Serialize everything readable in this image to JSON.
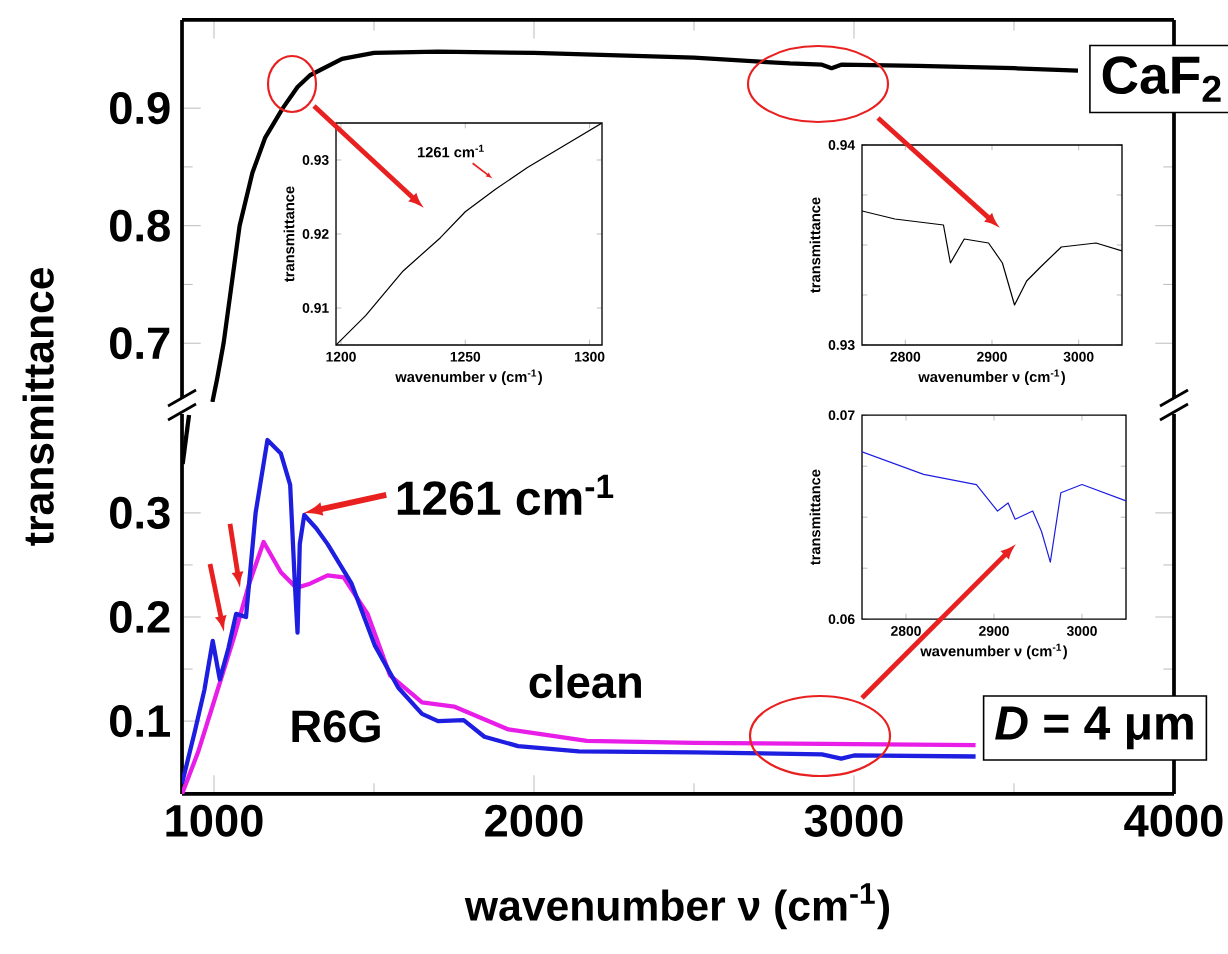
{
  "chart_data": [
    {
      "type": "line",
      "xlim": [
        900,
        4000
      ],
      "ylim": [
        0.65,
        0.975
      ],
      "xticks": [
        1000,
        2000,
        3000,
        4000
      ],
      "yticks": [
        0.7,
        0.8,
        0.9
      ],
      "tick_labels": "y",
      "series": [
        {
          "color": "#000000",
          "x": [
            995,
            1010,
            1030,
            1055,
            1080,
            1120,
            1160,
            1215,
            1261,
            1300,
            1400,
            1500,
            1700,
            2000,
            2500,
            2800,
            2900,
            2930,
            2960,
            3200,
            3500,
            3700
          ],
          "values": [
            0.65,
            0.67,
            0.7,
            0.75,
            0.8,
            0.845,
            0.875,
            0.9,
            0.918,
            0.928,
            0.942,
            0.947,
            0.948,
            0.947,
            0.943,
            0.938,
            0.937,
            0.934,
            0.937,
            0.936,
            0.934,
            0.932
          ]
        }
      ],
      "annotations": [
        "CaF$_{2}$"
      ]
    },
    {
      "type": "line",
      "xlim": [
        900,
        4000
      ],
      "ylim": [
        0.03,
        0.395
      ],
      "xticks": [
        1000,
        2000,
        3000,
        4000
      ],
      "yticks": [
        0.1,
        0.2,
        0.3
      ],
      "xlabel": "wavenumber ν (cm$^{-1}$)",
      "ylabel": "transmittance",
      "series": [
        {
          "color": "#000000",
          "x": [
            902,
            922
          ],
          "values": [
            0.347,
            0.394
          ]
        },
        {
          "name": "clean",
          "color": "#e81ee8",
          "x": [
            900,
            950,
            996,
            1062,
            1110,
            1155,
            1209,
            1257,
            1300,
            1355,
            1405,
            1480,
            1550,
            1650,
            1750,
            1920,
            2165,
            2500,
            3000,
            3380
          ],
          "values": [
            0.03,
            0.07,
            0.115,
            0.18,
            0.232,
            0.272,
            0.243,
            0.228,
            0.232,
            0.24,
            0.238,
            0.203,
            0.144,
            0.118,
            0.114,
            0.092,
            0.081,
            0.079,
            0.078,
            0.077
          ]
        },
        {
          "name": "R6G",
          "color": "#1e1ee0",
          "x": [
            900,
            940,
            970,
            996,
            1018,
            1045,
            1069,
            1100,
            1130,
            1167,
            1209,
            1238,
            1253,
            1261,
            1268,
            1282,
            1320,
            1355,
            1430,
            1502,
            1576,
            1650,
            1700,
            1780,
            1845,
            1950,
            2140,
            2500,
            2900,
            2960,
            3000,
            3380
          ],
          "values": [
            0.04,
            0.09,
            0.13,
            0.177,
            0.14,
            0.17,
            0.203,
            0.2,
            0.3,
            0.37,
            0.357,
            0.327,
            0.23,
            0.185,
            0.27,
            0.298,
            0.285,
            0.27,
            0.232,
            0.173,
            0.132,
            0.107,
            0.1,
            0.101,
            0.085,
            0.076,
            0.071,
            0.07,
            0.068,
            0.064,
            0.067,
            0.066
          ]
        }
      ],
      "annotations": [
        {
          "text": "1261 cm$^{-1}$",
          "x": 1261,
          "y": 0.3
        },
        "*D* = 4 μm"
      ]
    },
    {
      "type": "line",
      "xlim": [
        1198,
        1305
      ],
      "ylim": [
        0.905,
        0.935
      ],
      "xticks": [
        1200,
        1250,
        1300
      ],
      "yticks": [
        0.91,
        0.92,
        0.93
      ],
      "xlabel": "wavenumber ν (cm$^{-1}$)",
      "ylabel": "transmittance",
      "series": [
        {
          "color": "#000000",
          "x": [
            1198,
            1210,
            1225,
            1240,
            1250,
            1262,
            1275,
            1290,
            1300,
            1305
          ],
          "values": [
            0.905,
            0.909,
            0.915,
            0.9195,
            0.923,
            0.926,
            0.929,
            0.932,
            0.934,
            0.935
          ]
        }
      ],
      "annotations": [
        {
          "text": "1261 cm$^{-1}$",
          "x": 1261,
          "y": 0.9275
        }
      ]
    },
    {
      "type": "line",
      "xlim": [
        2750,
        3050
      ],
      "ylim": [
        0.93,
        0.94
      ],
      "xticks": [
        2800,
        2900,
        3000
      ],
      "yticks": [
        0.93,
        {
          "value": 0.9325,
          "label": null
        },
        {
          "value": 0.935,
          "label": null
        },
        {
          "value": 0.9375,
          "label": null
        },
        0.94
      ],
      "xlabel": "wavenumber ν (cm$^{-1}$)",
      "ylabel": "transmittance",
      "series": [
        {
          "color": "#000000",
          "x": [
            2750,
            2788,
            2844,
            2852,
            2868,
            2896,
            2912,
            2926,
            2940,
            2956,
            2980,
            3020,
            3050
          ],
          "values": [
            0.9367,
            0.9363,
            0.936,
            0.9341,
            0.9353,
            0.9351,
            0.9341,
            0.932,
            0.9332,
            0.9339,
            0.9349,
            0.9351,
            0.9347
          ]
        }
      ]
    },
    {
      "type": "line",
      "xlim": [
        2750,
        3050
      ],
      "ylim": [
        0.06,
        0.07
      ],
      "xticks": [
        2800,
        2900,
        3000
      ],
      "yticks": [
        0.06,
        {
          "value": 0.0625,
          "label": null
        },
        {
          "value": 0.065,
          "label": null
        },
        {
          "value": 0.0675,
          "label": null
        },
        0.07
      ],
      "xlabel": "wavenumber ν (cm$^{-1}$)",
      "ylabel": "transmittance",
      "series": [
        {
          "color": "#1e1ee0",
          "x": [
            2750,
            2820,
            2880,
            2904,
            2916,
            2924,
            2944,
            2954,
            2964,
            2976,
            3000,
            3050
          ],
          "values": [
            0.0682,
            0.0671,
            0.0666,
            0.0653,
            0.0657,
            0.0649,
            0.0653,
            0.0643,
            0.0628,
            0.0662,
            0.0666,
            0.0658
          ]
        }
      ]
    }
  ]
}
